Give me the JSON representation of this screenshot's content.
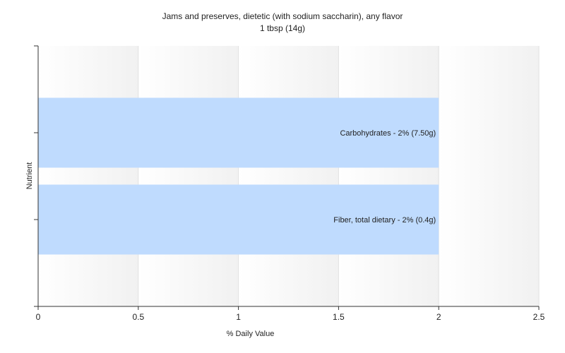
{
  "chart_data": {
    "type": "bar",
    "orientation": "horizontal",
    "title": "Jams and preserves, dietetic (with sodium saccharin), any flavor",
    "subtitle": "1 tbsp (14g)",
    "xlabel": "% Daily Value",
    "ylabel": "Nutrient",
    "xlim": [
      0,
      2.5
    ],
    "xticks": [
      "0",
      "0.5",
      "1",
      "1.5",
      "2",
      "2.5"
    ],
    "grid": true,
    "bar_color": "#bfdbfe",
    "categories": [
      "Carbohydrates - 2% (7.50g)",
      "Fiber, total dietary - 2% (0.4g)"
    ],
    "values": [
      2,
      2
    ]
  }
}
